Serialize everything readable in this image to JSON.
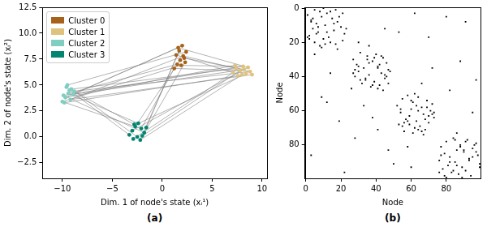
{
  "chart_data": [
    {
      "type": "scatter",
      "caption": "(a)",
      "x_label": "Dim. 1 of node's state (xᵢ¹)",
      "y_label": "Dim. 2 of node's state (xᵢ²)",
      "xlim": [
        -12,
        10.5
      ],
      "xticks": [
        {
          "value": -10,
          "label": "−10"
        },
        {
          "value": -5,
          "label": "−5"
        },
        0,
        5,
        10
      ],
      "ylim": [
        -4,
        12.5
      ],
      "yticks": [
        {
          "value": -2.5,
          "label": "−2.5"
        },
        {
          "value": 0,
          "label": "0.0"
        },
        2.5,
        {
          "value": 5,
          "label": "5.0"
        },
        7.5,
        {
          "value": 10,
          "label": "10.0"
        },
        12.5
      ],
      "grid": false,
      "legend": "upper left",
      "marker": "circle",
      "series": [
        {
          "name": "Cluster 0",
          "color": "#a6611a",
          "x": [
            1.2,
            1.5,
            1.8,
            2.1,
            2.4,
            1.6,
            2.0,
            2.3,
            1.4,
            1.9,
            2.2,
            1.7
          ],
          "y": [
            6.6,
            7.0,
            7.4,
            7.8,
            8.2,
            8.6,
            8.8,
            7.2,
            7.9,
            6.9,
            7.6,
            8.3
          ]
        },
        {
          "name": "Cluster 1",
          "color": "#dfc27d",
          "x": [
            7.1,
            7.4,
            7.8,
            8.1,
            8.4,
            8.8,
            7.6,
            8.0,
            8.6,
            7.3,
            8.2,
            9.0
          ],
          "y": [
            6.2,
            6.6,
            6.4,
            6.8,
            6.1,
            6.3,
            5.9,
            6.0,
            6.7,
            6.9,
            6.5,
            6.0
          ]
        },
        {
          "name": "Cluster 2",
          "color": "#80cdc1",
          "x": [
            -10.0,
            -9.7,
            -9.4,
            -9.1,
            -8.8,
            -9.5,
            -9.9,
            -9.2,
            -9.6,
            -8.9,
            -9.3,
            -9.8
          ],
          "y": [
            3.4,
            3.8,
            4.2,
            4.6,
            4.4,
            5.0,
            4.0,
            3.6,
            4.8,
            4.1,
            4.5,
            3.3
          ]
        },
        {
          "name": "Cluster 3",
          "color": "#018571",
          "x": [
            -3.3,
            -3.0,
            -2.7,
            -2.4,
            -2.1,
            -1.8,
            -2.9,
            -2.5,
            -2.2,
            -1.6,
            -2.8,
            -2.0
          ],
          "y": [
            0.2,
            0.6,
            1.0,
            1.3,
            0.8,
            0.4,
            -0.2,
            0.0,
            -0.3,
            0.9,
            1.2,
            0.1
          ]
        }
      ],
      "edges": {
        "color": "#808080",
        "pairs": [
          [
            0,
            14
          ],
          [
            3,
            17
          ],
          [
            5,
            20
          ],
          [
            8,
            12
          ],
          [
            10,
            22
          ],
          [
            1,
            26
          ],
          [
            4,
            29
          ],
          [
            6,
            33
          ],
          [
            9,
            24
          ],
          [
            2,
            38
          ],
          [
            7,
            41
          ],
          [
            11,
            45
          ],
          [
            13,
            27
          ],
          [
            15,
            30
          ],
          [
            18,
            35
          ],
          [
            21,
            25
          ],
          [
            23,
            31
          ],
          [
            16,
            39
          ],
          [
            19,
            44
          ],
          [
            14,
            47
          ],
          [
            12,
            42
          ],
          [
            20,
            37
          ],
          [
            24,
            40
          ],
          [
            28,
            43
          ],
          [
            32,
            46
          ],
          [
            34,
            36
          ],
          [
            26,
            39
          ],
          [
            30,
            41
          ],
          [
            17,
            28
          ],
          [
            22,
            33
          ],
          [
            3,
            31
          ],
          [
            11,
            44
          ],
          [
            0,
            40
          ],
          [
            5,
            25
          ],
          [
            9,
            15
          ]
        ]
      }
    },
    {
      "type": "matrix",
      "caption": "(b)",
      "x_label": "Node",
      "y_label": "Node",
      "xlim": [
        -0.5,
        99.5
      ],
      "xticks": [
        0,
        20,
        40,
        60,
        80
      ],
      "ylim": [
        99.5,
        -0.5
      ],
      "yticks": [
        0,
        20,
        40,
        60,
        80
      ],
      "grid": false,
      "marker": "square",
      "color": "#000000",
      "cells": [
        [
          1,
          5
        ],
        [
          2,
          8
        ],
        [
          3,
          12
        ],
        [
          4,
          1
        ],
        [
          5,
          9
        ],
        [
          6,
          15
        ],
        [
          7,
          3
        ],
        [
          8,
          18
        ],
        [
          9,
          6
        ],
        [
          10,
          11
        ],
        [
          11,
          20
        ],
        [
          12,
          4
        ],
        [
          13,
          16
        ],
        [
          14,
          7
        ],
        [
          15,
          22
        ],
        [
          16,
          2
        ],
        [
          17,
          13
        ],
        [
          18,
          10
        ],
        [
          19,
          21
        ],
        [
          20,
          5
        ],
        [
          21,
          17
        ],
        [
          22,
          8
        ],
        [
          2,
          14
        ],
        [
          5,
          19
        ],
        [
          8,
          3
        ],
        [
          11,
          7
        ],
        [
          14,
          12
        ],
        [
          17,
          1
        ],
        [
          20,
          14
        ],
        [
          23,
          9
        ],
        [
          0,
          10
        ],
        [
          3,
          21
        ],
        [
          6,
          4
        ],
        [
          9,
          16
        ],
        [
          12,
          23
        ],
        [
          15,
          6
        ],
        [
          18,
          2
        ],
        [
          21,
          11
        ],
        [
          24,
          18
        ],
        [
          1,
          17
        ],
        [
          26,
          31
        ],
        [
          27,
          40
        ],
        [
          28,
          35
        ],
        [
          29,
          44
        ],
        [
          30,
          27
        ],
        [
          31,
          38
        ],
        [
          32,
          46
        ],
        [
          33,
          29
        ],
        [
          34,
          41
        ],
        [
          35,
          33
        ],
        [
          36,
          47
        ],
        [
          37,
          30
        ],
        [
          38,
          43
        ],
        [
          39,
          36
        ],
        [
          40,
          28
        ],
        [
          41,
          45
        ],
        [
          42,
          34
        ],
        [
          43,
          39
        ],
        [
          44,
          32
        ],
        [
          45,
          42
        ],
        [
          46,
          37
        ],
        [
          47,
          26
        ],
        [
          48,
          44
        ],
        [
          30,
          35
        ],
        [
          33,
          42
        ],
        [
          36,
          28
        ],
        [
          39,
          45
        ],
        [
          42,
          31
        ],
        [
          45,
          38
        ],
        [
          35,
          41
        ],
        [
          38,
          27
        ],
        [
          41,
          34
        ],
        [
          44,
          47
        ],
        [
          32,
          36
        ],
        [
          29,
          39
        ],
        [
          40,
          46
        ],
        [
          34,
          30
        ],
        [
          47,
          41
        ],
        [
          28,
          43
        ],
        [
          37,
          48
        ],
        [
          51,
          58
        ],
        [
          52,
          64
        ],
        [
          53,
          55
        ],
        [
          54,
          69
        ],
        [
          55,
          61
        ],
        [
          56,
          72
        ],
        [
          57,
          52
        ],
        [
          58,
          66
        ],
        [
          59,
          60
        ],
        [
          60,
          71
        ],
        [
          61,
          54
        ],
        [
          62,
          67
        ],
        [
          63,
          59
        ],
        [
          64,
          73
        ],
        [
          65,
          57
        ],
        [
          66,
          63
        ],
        [
          67,
          70
        ],
        [
          68,
          53
        ],
        [
          69,
          65
        ],
        [
          70,
          62
        ],
        [
          71,
          68
        ],
        [
          72,
          56
        ],
        [
          73,
          61
        ],
        [
          60,
          64
        ],
        [
          63,
          70
        ],
        [
          66,
          58
        ],
        [
          69,
          55
        ],
        [
          72,
          66
        ],
        [
          57,
          63
        ],
        [
          54,
          60
        ],
        [
          62,
          72
        ],
        [
          65,
          68
        ],
        [
          68,
          59
        ],
        [
          71,
          64
        ],
        [
          74,
          67
        ],
        [
          50,
          62
        ],
        [
          59,
          54
        ],
        [
          67,
          56
        ],
        [
          61,
          73
        ],
        [
          58,
          69
        ],
        [
          76,
          84
        ],
        [
          77,
          92
        ],
        [
          78,
          80
        ],
        [
          79,
          97
        ],
        [
          80,
          88
        ],
        [
          81,
          77
        ],
        [
          82,
          95
        ],
        [
          83,
          86
        ],
        [
          84,
          90
        ],
        [
          85,
          79
        ],
        [
          86,
          98
        ],
        [
          87,
          82
        ],
        [
          88,
          93
        ],
        [
          89,
          76
        ],
        [
          90,
          85
        ],
        [
          91,
          99
        ],
        [
          92,
          81
        ],
        [
          93,
          89
        ],
        [
          94,
          78
        ],
        [
          95,
          91
        ],
        [
          96,
          83
        ],
        [
          97,
          87
        ],
        [
          98,
          94
        ],
        [
          99,
          80
        ],
        [
          80,
          96
        ],
        [
          83,
          90
        ],
        [
          86,
          77
        ],
        [
          89,
          93
        ],
        [
          92,
          86
        ],
        [
          95,
          84
        ],
        [
          98,
          79
        ],
        [
          78,
          91
        ],
        [
          81,
          88
        ],
        [
          84,
          97
        ],
        [
          87,
          95
        ],
        [
          90,
          82
        ],
        [
          93,
          99
        ],
        [
          96,
          76
        ],
        [
          77,
          85
        ],
        [
          99,
          89
        ],
        [
          3,
          62
        ],
        [
          8,
          91
        ],
        [
          12,
          45
        ],
        [
          17,
          70
        ],
        [
          22,
          36
        ],
        [
          27,
          5
        ],
        [
          31,
          88
        ],
        [
          38,
          14
        ],
        [
          44,
          66
        ],
        [
          48,
          82
        ],
        [
          52,
          9
        ],
        [
          57,
          33
        ],
        [
          61,
          95
        ],
        [
          66,
          19
        ],
        [
          71,
          41
        ],
        [
          76,
          28
        ],
        [
          81,
          58
        ],
        [
          86,
          3
        ],
        [
          91,
          50
        ],
        [
          96,
          22
        ],
        [
          5,
          80
        ],
        [
          14,
          53
        ],
        [
          20,
          30
        ],
        [
          35,
          72
        ],
        [
          42,
          97
        ],
        [
          55,
          12
        ],
        [
          64,
          38
        ],
        [
          73,
          86
        ],
        [
          83,
          47
        ],
        [
          93,
          60
        ]
      ]
    }
  ]
}
